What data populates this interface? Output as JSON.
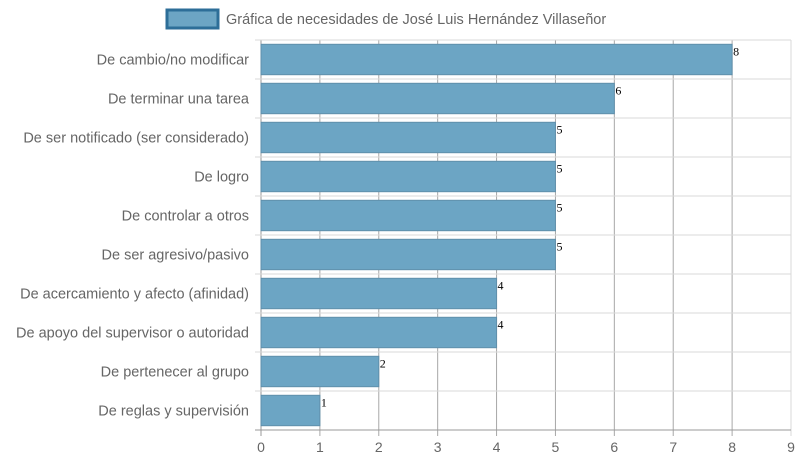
{
  "chart_data": {
    "type": "bar",
    "orientation": "horizontal",
    "legend_position": "top",
    "series": [
      {
        "name": "Gráfica de necesidades de José Luis Hernández Villaseñor",
        "values": [
          8,
          6,
          5,
          5,
          5,
          5,
          4,
          4,
          2,
          1
        ]
      }
    ],
    "categories": [
      "De cambio/no modificar",
      "De terminar una tarea",
      "De ser notificado (ser considerado)",
      "De logro",
      "De controlar a otros",
      "De ser agresivo/pasivo",
      "De acercamiento y afecto (afinidad)",
      "De apoyo del supervisor o autoridad",
      "De pertenecer al grupo",
      "De reglas y supervisión"
    ],
    "xlim": [
      0,
      9
    ],
    "x_ticks": [
      "0",
      "1",
      "2",
      "3",
      "4",
      "5",
      "6",
      "7",
      "8",
      "9"
    ],
    "grid": true,
    "colors": {
      "bar_fill": "#6ca5c4",
      "bar_stroke": "#5f8fab",
      "legend_stroke": "#2d6e98",
      "grid": "#d9d9d9",
      "grid_dark": "#999999"
    }
  }
}
